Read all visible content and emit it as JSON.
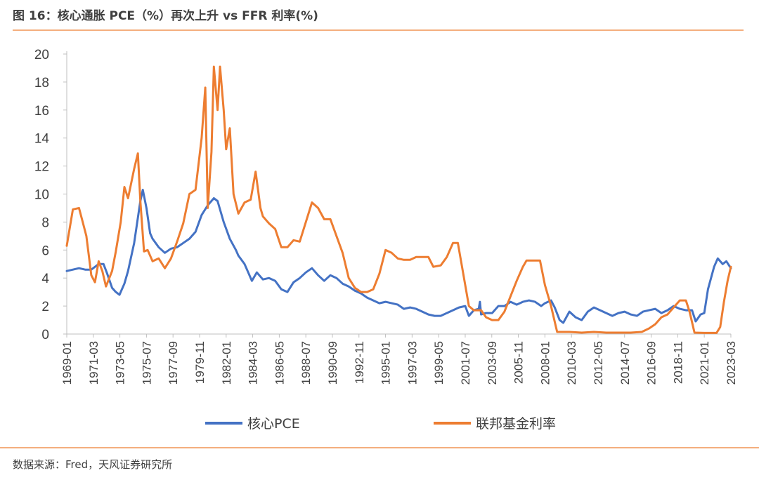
{
  "header": {
    "title": "图 16：核心通胀 PCE（%）再次上升  vs FFR 利率(%)"
  },
  "footer": {
    "source": "数据来源：Fred，天风证券研究所"
  },
  "colors": {
    "rule": "#ED7D31",
    "axis": "#BFBFBF",
    "text": "#404040"
  },
  "chart_data": {
    "type": "line",
    "title": "图 16：核心通胀 PCE（%）再次上升  vs FFR 利率(%)",
    "xlabel": "",
    "ylabel": "",
    "xlim": [
      1969.0,
      2023.17
    ],
    "ylim": [
      0,
      20
    ],
    "yticks": [
      0,
      2,
      4,
      6,
      8,
      10,
      12,
      14,
      16,
      18,
      20
    ],
    "xtick_labels": [
      "1969-01",
      "1971-03",
      "1973-05",
      "1975-07",
      "1977-09",
      "1979-11",
      "1982-01",
      "1984-03",
      "1986-05",
      "1988-07",
      "1990-09",
      "1992-11",
      "1995-01",
      "1997-03",
      "1999-05",
      "2001-07",
      "2003-09",
      "2005-11",
      "2008-01",
      "2010-03",
      "2012-05",
      "2014-07",
      "2016-09",
      "2018-11",
      "2021-01",
      "2023-03"
    ],
    "legend_position": "bottom",
    "grid": false,
    "series": [
      {
        "name": "核心PCE",
        "color": "#4472C4",
        "points": [
          [
            1969.0,
            4.5
          ],
          [
            1970.0,
            4.7
          ],
          [
            1970.5,
            4.6
          ],
          [
            1971.0,
            4.6
          ],
          [
            1971.6,
            5.0
          ],
          [
            1972.0,
            5.0
          ],
          [
            1972.3,
            4.3
          ],
          [
            1972.7,
            3.3
          ],
          [
            1973.0,
            3.0
          ],
          [
            1973.3,
            2.8
          ],
          [
            1973.7,
            3.6
          ],
          [
            1974.0,
            4.5
          ],
          [
            1974.5,
            6.5
          ],
          [
            1975.0,
            9.5
          ],
          [
            1975.2,
            10.3
          ],
          [
            1975.5,
            9.0
          ],
          [
            1975.8,
            7.2
          ],
          [
            1976.0,
            6.8
          ],
          [
            1976.5,
            6.2
          ],
          [
            1977.0,
            5.8
          ],
          [
            1977.5,
            6.1
          ],
          [
            1978.0,
            6.2
          ],
          [
            1978.5,
            6.5
          ],
          [
            1979.0,
            6.8
          ],
          [
            1979.5,
            7.3
          ],
          [
            1980.0,
            8.5
          ],
          [
            1980.5,
            9.2
          ],
          [
            1981.0,
            9.7
          ],
          [
            1981.3,
            9.5
          ],
          [
            1981.8,
            8.0
          ],
          [
            1982.3,
            6.8
          ],
          [
            1982.8,
            6.0
          ],
          [
            1983.0,
            5.6
          ],
          [
            1983.5,
            5.0
          ],
          [
            1983.8,
            4.4
          ],
          [
            1984.1,
            3.8
          ],
          [
            1984.5,
            4.4
          ],
          [
            1985.0,
            3.9
          ],
          [
            1985.5,
            4.0
          ],
          [
            1986.0,
            3.8
          ],
          [
            1986.5,
            3.2
          ],
          [
            1987.0,
            3.0
          ],
          [
            1987.5,
            3.7
          ],
          [
            1988.0,
            4.0
          ],
          [
            1988.5,
            4.4
          ],
          [
            1989.0,
            4.7
          ],
          [
            1989.5,
            4.2
          ],
          [
            1990.0,
            3.8
          ],
          [
            1990.5,
            4.2
          ],
          [
            1991.0,
            4.0
          ],
          [
            1991.5,
            3.6
          ],
          [
            1992.0,
            3.4
          ],
          [
            1992.5,
            3.1
          ],
          [
            1993.0,
            2.9
          ],
          [
            1993.5,
            2.6
          ],
          [
            1994.0,
            2.4
          ],
          [
            1994.5,
            2.2
          ],
          [
            1995.0,
            2.3
          ],
          [
            1995.5,
            2.2
          ],
          [
            1996.0,
            2.1
          ],
          [
            1996.5,
            1.8
          ],
          [
            1997.0,
            1.9
          ],
          [
            1997.5,
            1.8
          ],
          [
            1998.0,
            1.6
          ],
          [
            1998.5,
            1.4
          ],
          [
            1999.0,
            1.3
          ],
          [
            1999.5,
            1.3
          ],
          [
            2000.0,
            1.5
          ],
          [
            2000.5,
            1.7
          ],
          [
            2001.0,
            1.9
          ],
          [
            2001.5,
            2.0
          ],
          [
            2001.8,
            1.3
          ],
          [
            2002.2,
            1.7
          ],
          [
            2002.6,
            1.8
          ],
          [
            2002.7,
            2.3
          ],
          [
            2002.8,
            1.4
          ],
          [
            2003.2,
            1.5
          ],
          [
            2003.7,
            1.5
          ],
          [
            2004.2,
            2.0
          ],
          [
            2004.7,
            2.0
          ],
          [
            2005.2,
            2.3
          ],
          [
            2005.7,
            2.1
          ],
          [
            2006.2,
            2.3
          ],
          [
            2006.7,
            2.4
          ],
          [
            2007.2,
            2.3
          ],
          [
            2007.7,
            2.0
          ],
          [
            2008.0,
            2.2
          ],
          [
            2008.5,
            2.4
          ],
          [
            2008.8,
            1.9
          ],
          [
            2009.2,
            1.0
          ],
          [
            2009.5,
            0.8
          ],
          [
            2010.0,
            1.6
          ],
          [
            2010.5,
            1.2
          ],
          [
            2011.0,
            1.0
          ],
          [
            2011.5,
            1.6
          ],
          [
            2012.0,
            1.9
          ],
          [
            2012.5,
            1.7
          ],
          [
            2013.0,
            1.5
          ],
          [
            2013.5,
            1.3
          ],
          [
            2014.0,
            1.5
          ],
          [
            2014.5,
            1.6
          ],
          [
            2015.0,
            1.4
          ],
          [
            2015.5,
            1.3
          ],
          [
            2016.0,
            1.6
          ],
          [
            2016.5,
            1.7
          ],
          [
            2017.0,
            1.8
          ],
          [
            2017.5,
            1.5
          ],
          [
            2018.0,
            1.7
          ],
          [
            2018.5,
            2.0
          ],
          [
            2019.0,
            1.8
          ],
          [
            2019.5,
            1.7
          ],
          [
            2020.0,
            1.7
          ],
          [
            2020.3,
            0.9
          ],
          [
            2020.7,
            1.4
          ],
          [
            2021.0,
            1.5
          ],
          [
            2021.3,
            3.2
          ],
          [
            2021.8,
            4.8
          ],
          [
            2022.1,
            5.4
          ],
          [
            2022.5,
            5.0
          ],
          [
            2022.8,
            5.2
          ],
          [
            2023.17,
            4.7
          ]
        ]
      },
      {
        "name": "联邦基金利率",
        "color": "#ED7D31",
        "points": [
          [
            1969.0,
            6.3
          ],
          [
            1969.5,
            8.9
          ],
          [
            1970.0,
            9.0
          ],
          [
            1970.3,
            8.0
          ],
          [
            1970.6,
            7.0
          ],
          [
            1971.0,
            4.2
          ],
          [
            1971.3,
            3.7
          ],
          [
            1971.6,
            5.2
          ],
          [
            1971.9,
            4.5
          ],
          [
            1972.2,
            3.4
          ],
          [
            1972.7,
            4.5
          ],
          [
            1973.0,
            5.9
          ],
          [
            1973.4,
            8.0
          ],
          [
            1973.7,
            10.5
          ],
          [
            1974.0,
            9.7
          ],
          [
            1974.5,
            11.8
          ],
          [
            1974.8,
            12.9
          ],
          [
            1975.0,
            9.5
          ],
          [
            1975.3,
            5.9
          ],
          [
            1975.6,
            6.0
          ],
          [
            1976.0,
            5.2
          ],
          [
            1976.5,
            5.4
          ],
          [
            1977.0,
            4.7
          ],
          [
            1977.5,
            5.4
          ],
          [
            1978.0,
            6.6
          ],
          [
            1978.5,
            7.9
          ],
          [
            1979.0,
            10.0
          ],
          [
            1979.5,
            10.3
          ],
          [
            1980.0,
            14.0
          ],
          [
            1980.3,
            17.6
          ],
          [
            1980.5,
            9.0
          ],
          [
            1980.8,
            13.0
          ],
          [
            1981.0,
            19.1
          ],
          [
            1981.3,
            16.0
          ],
          [
            1981.5,
            19.1
          ],
          [
            1981.8,
            16.0
          ],
          [
            1982.0,
            13.2
          ],
          [
            1982.3,
            14.7
          ],
          [
            1982.6,
            10.0
          ],
          [
            1983.0,
            8.6
          ],
          [
            1983.5,
            9.4
          ],
          [
            1984.0,
            9.6
          ],
          [
            1984.4,
            11.6
          ],
          [
            1984.8,
            9.0
          ],
          [
            1985.0,
            8.4
          ],
          [
            1985.5,
            7.9
          ],
          [
            1986.0,
            7.5
          ],
          [
            1986.5,
            6.2
          ],
          [
            1987.0,
            6.2
          ],
          [
            1987.5,
            6.7
          ],
          [
            1988.0,
            6.6
          ],
          [
            1988.5,
            8.0
          ],
          [
            1989.0,
            9.4
          ],
          [
            1989.5,
            9.0
          ],
          [
            1990.0,
            8.2
          ],
          [
            1990.5,
            8.2
          ],
          [
            1991.0,
            7.0
          ],
          [
            1991.5,
            5.8
          ],
          [
            1992.0,
            4.0
          ],
          [
            1992.5,
            3.3
          ],
          [
            1993.0,
            3.0
          ],
          [
            1993.5,
            3.0
          ],
          [
            1994.0,
            3.2
          ],
          [
            1994.5,
            4.3
          ],
          [
            1995.0,
            6.0
          ],
          [
            1995.5,
            5.8
          ],
          [
            1996.0,
            5.4
          ],
          [
            1996.5,
            5.3
          ],
          [
            1997.0,
            5.3
          ],
          [
            1997.5,
            5.5
          ],
          [
            1998.0,
            5.5
          ],
          [
            1998.5,
            5.5
          ],
          [
            1998.9,
            4.8
          ],
          [
            1999.5,
            4.9
          ],
          [
            2000.0,
            5.5
          ],
          [
            2000.5,
            6.5
          ],
          [
            2000.9,
            6.5
          ],
          [
            2001.3,
            4.5
          ],
          [
            2001.8,
            2.0
          ],
          [
            2002.2,
            1.7
          ],
          [
            2002.8,
            1.7
          ],
          [
            2003.2,
            1.2
          ],
          [
            2003.7,
            1.0
          ],
          [
            2004.2,
            1.0
          ],
          [
            2004.7,
            1.6
          ],
          [
            2005.2,
            2.7
          ],
          [
            2005.7,
            3.8
          ],
          [
            2006.2,
            4.8
          ],
          [
            2006.5,
            5.25
          ],
          [
            2007.0,
            5.25
          ],
          [
            2007.6,
            5.25
          ],
          [
            2008.0,
            3.5
          ],
          [
            2008.5,
            2.0
          ],
          [
            2008.9,
            0.5
          ],
          [
            2009.0,
            0.15
          ],
          [
            2010.0,
            0.15
          ],
          [
            2011.0,
            0.1
          ],
          [
            2012.0,
            0.15
          ],
          [
            2013.0,
            0.1
          ],
          [
            2014.0,
            0.1
          ],
          [
            2015.0,
            0.1
          ],
          [
            2015.9,
            0.15
          ],
          [
            2016.5,
            0.4
          ],
          [
            2017.0,
            0.7
          ],
          [
            2017.5,
            1.2
          ],
          [
            2018.0,
            1.4
          ],
          [
            2018.5,
            1.9
          ],
          [
            2019.0,
            2.4
          ],
          [
            2019.5,
            2.4
          ],
          [
            2019.8,
            1.6
          ],
          [
            2020.2,
            0.1
          ],
          [
            2021.0,
            0.08
          ],
          [
            2021.6,
            0.08
          ],
          [
            2022.0,
            0.08
          ],
          [
            2022.3,
            0.5
          ],
          [
            2022.6,
            2.3
          ],
          [
            2022.9,
            3.8
          ],
          [
            2023.17,
            4.8
          ]
        ]
      }
    ]
  }
}
